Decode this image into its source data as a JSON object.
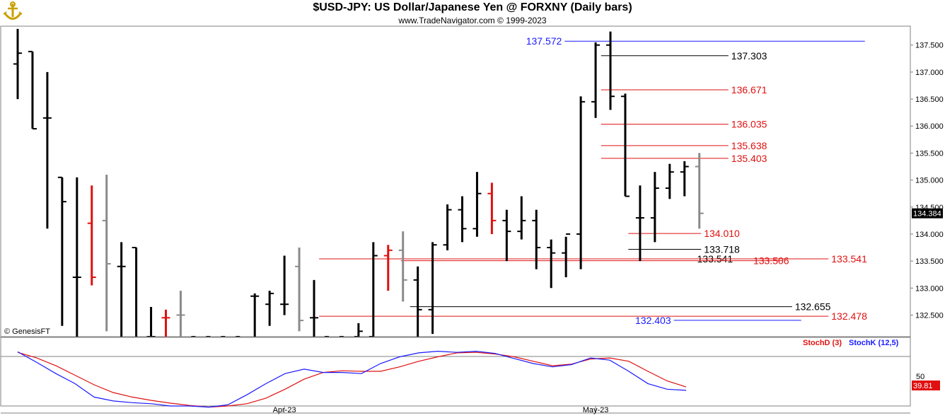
{
  "header": {
    "title": "$USD-JPY:  US Dollar/Japanese Yen @ FORXNY  (Daily bars)",
    "subtitle": "www.TradeNavigator.com © 1999-2023"
  },
  "watermark": "© GenesisFT",
  "colors": {
    "bar_black": "#000000",
    "bar_red": "#e01010",
    "bar_gray": "#8a8a8a",
    "level_red": "#e01010",
    "level_blue": "#1a1aff",
    "level_black": "#000000",
    "stoch_d": "#e01010",
    "stoch_k": "#1a1aff",
    "last_price_bg": "#000000",
    "stoch_last_bg": "#e01010"
  },
  "chart_data": [
    {
      "type": "ohlc",
      "title": "$USD-JPY:  US Dollar/Japanese Yen @ FORXNY  (Daily bars)",
      "ylim": [
        132.1,
        137.85
      ],
      "y_ticks": [
        "132.500",
        "133.000",
        "133.500",
        "134.000",
        "134.500",
        "135.000",
        "135.500",
        "136.000",
        "136.500",
        "137.000",
        "137.500"
      ],
      "y_tick_values": [
        132.5,
        133.0,
        133.5,
        134.0,
        134.5,
        135.0,
        135.5,
        136.0,
        136.5,
        137.0,
        137.5
      ],
      "x_labels": [
        {
          "label": "Apr-23",
          "bar": 18
        },
        {
          "label": "May-23",
          "bar": 39
        }
      ],
      "last_price": "134.384",
      "bars": [
        {
          "o": 137.15,
          "h": 137.8,
          "l": 136.5,
          "c": 137.35,
          "col": "black"
        },
        {
          "o": 137.38,
          "h": 137.38,
          "l": 135.95,
          "c": 135.95,
          "col": "black"
        },
        {
          "o": 136.15,
          "h": 137.0,
          "l": 134.1,
          "c": 136.15,
          "col": "black"
        },
        {
          "o": 135.05,
          "h": 135.05,
          "l": 132.3,
          "c": 134.6,
          "col": "black"
        },
        {
          "o": 133.2,
          "h": 135.05,
          "l": 132.1,
          "c": 133.2,
          "col": "black"
        },
        {
          "o": 134.2,
          "h": 134.9,
          "l": 133.05,
          "c": 133.2,
          "col": "red"
        },
        {
          "o": 134.25,
          "h": 135.1,
          "l": 132.2,
          "c": 133.45,
          "col": "gray"
        },
        {
          "o": 133.4,
          "h": 133.85,
          "l": 131.9,
          "c": 133.4,
          "col": "black"
        },
        {
          "o": 133.75,
          "h": 133.75,
          "l": 131.9,
          "c": 131.9,
          "col": "black"
        },
        {
          "o": 132.1,
          "h": 132.65,
          "l": 131.9,
          "c": 132.1,
          "col": "black"
        },
        {
          "o": 132.45,
          "h": 132.6,
          "l": 132.1,
          "c": 132.45,
          "col": "red"
        },
        {
          "o": 132.5,
          "h": 132.95,
          "l": 132.1,
          "c": 132.5,
          "col": "gray"
        },
        {
          "o": 132.1,
          "h": 132.1,
          "l": 131.9,
          "c": 131.9,
          "col": "black"
        },
        {
          "o": 132.1,
          "h": 132.1,
          "l": 131.9,
          "c": 131.9,
          "col": "black"
        },
        {
          "o": 132.1,
          "h": 132.1,
          "l": 131.9,
          "c": 131.9,
          "col": "black"
        },
        {
          "o": 132.1,
          "h": 132.1,
          "l": 131.9,
          "c": 131.9,
          "col": "black"
        },
        {
          "o": 132.85,
          "h": 132.9,
          "l": 132.1,
          "c": 132.85,
          "col": "black"
        },
        {
          "o": 132.7,
          "h": 132.95,
          "l": 132.3,
          "c": 132.9,
          "col": "black"
        },
        {
          "o": 132.7,
          "h": 133.6,
          "l": 132.5,
          "c": 132.7,
          "col": "black"
        },
        {
          "o": 133.4,
          "h": 133.75,
          "l": 132.2,
          "c": 132.4,
          "col": "gray"
        },
        {
          "o": 132.45,
          "h": 133.15,
          "l": 132.1,
          "c": 132.45,
          "col": "black"
        },
        {
          "o": 132.1,
          "h": 132.1,
          "l": 131.9,
          "c": 131.9,
          "col": "black"
        },
        {
          "o": 132.1,
          "h": 132.1,
          "l": 131.9,
          "c": 131.9,
          "col": "black"
        },
        {
          "o": 132.1,
          "h": 132.35,
          "l": 132.05,
          "c": 132.2,
          "col": "black"
        },
        {
          "o": 132.1,
          "h": 133.85,
          "l": 132.1,
          "c": 133.6,
          "col": "black"
        },
        {
          "o": 133.6,
          "h": 133.8,
          "l": 132.95,
          "c": 133.7,
          "col": "red"
        },
        {
          "o": 133.7,
          "h": 134.05,
          "l": 132.75,
          "c": 133.15,
          "col": "gray"
        },
        {
          "o": 133.15,
          "h": 133.4,
          "l": 132.1,
          "c": 132.6,
          "col": "black"
        },
        {
          "o": 132.6,
          "h": 133.85,
          "l": 132.15,
          "c": 133.8,
          "col": "black"
        },
        {
          "o": 133.8,
          "h": 134.55,
          "l": 133.7,
          "c": 134.45,
          "col": "black"
        },
        {
          "o": 134.45,
          "h": 134.7,
          "l": 133.85,
          "c": 134.1,
          "col": "black"
        },
        {
          "o": 134.1,
          "h": 135.15,
          "l": 133.95,
          "c": 134.75,
          "col": "black"
        },
        {
          "o": 134.75,
          "h": 134.95,
          "l": 134.0,
          "c": 134.25,
          "col": "red"
        },
        {
          "o": 134.25,
          "h": 134.45,
          "l": 133.5,
          "c": 134.05,
          "col": "black"
        },
        {
          "o": 134.05,
          "h": 134.7,
          "l": 133.9,
          "c": 134.25,
          "col": "black"
        },
        {
          "o": 134.25,
          "h": 134.45,
          "l": 133.35,
          "c": 133.75,
          "col": "black"
        },
        {
          "o": 133.75,
          "h": 133.9,
          "l": 133.0,
          "c": 133.65,
          "col": "black"
        },
        {
          "o": 133.65,
          "h": 133.95,
          "l": 133.2,
          "c": 134.0,
          "col": "black"
        },
        {
          "o": 134.0,
          "h": 136.55,
          "l": 133.35,
          "c": 136.45,
          "col": "black"
        },
        {
          "o": 136.45,
          "h": 137.55,
          "l": 136.15,
          "c": 137.5,
          "col": "black"
        },
        {
          "o": 137.5,
          "h": 137.75,
          "l": 136.3,
          "c": 136.55,
          "col": "black"
        },
        {
          "o": 136.55,
          "h": 136.6,
          "l": 134.7,
          "c": 134.7,
          "col": "black"
        },
        {
          "o": 134.3,
          "h": 134.9,
          "l": 133.5,
          "c": 134.3,
          "col": "black"
        },
        {
          "o": 134.3,
          "h": 135.15,
          "l": 133.85,
          "c": 134.85,
          "col": "black"
        },
        {
          "o": 134.85,
          "h": 135.3,
          "l": 134.65,
          "c": 135.15,
          "col": "black"
        },
        {
          "o": 135.15,
          "h": 135.35,
          "l": 134.7,
          "c": 135.25,
          "col": "black"
        },
        {
          "o": 135.25,
          "h": 135.5,
          "l": 134.1,
          "c": 134.384,
          "col": "gray"
        }
      ],
      "levels": [
        {
          "label": "137.572",
          "value": 137.572,
          "color": "blue",
          "x_from": 0.62,
          "x_to": 0.95,
          "label_side": "left"
        },
        {
          "label": "137.303",
          "value": 137.303,
          "color": "black",
          "x_from": 0.66,
          "x_to": 0.8,
          "label_side": "right"
        },
        {
          "label": "136.671",
          "value": 136.671,
          "color": "red",
          "x_from": 0.66,
          "x_to": 0.8,
          "label_side": "right"
        },
        {
          "label": "136.035",
          "value": 136.035,
          "color": "red",
          "x_from": 0.66,
          "x_to": 0.8,
          "label_side": "right"
        },
        {
          "label": "135.638",
          "value": 135.638,
          "color": "red",
          "x_from": 0.66,
          "x_to": 0.8,
          "label_side": "right"
        },
        {
          "label": "135.403",
          "value": 135.403,
          "color": "red",
          "x_from": 0.66,
          "x_to": 0.8,
          "label_side": "right"
        },
        {
          "label": "134.010",
          "value": 134.01,
          "color": "red",
          "x_from": 0.69,
          "x_to": 0.77,
          "label_side": "right"
        },
        {
          "label": "133.718",
          "value": 133.718,
          "color": "black",
          "x_from": 0.69,
          "x_to": 0.77,
          "label_side": "right"
        },
        {
          "label": "133.541",
          "value": 133.541,
          "color": "black",
          "x_from": 0.44,
          "x_to": 0.82,
          "label_side": "right_inner"
        },
        {
          "label": "133.506",
          "value": 133.506,
          "color": "red",
          "x_from": 0.44,
          "x_to": 0.86,
          "label_side": "right_mid"
        },
        {
          "label": "133.541",
          "value": 133.541,
          "color": "red",
          "x_from": 0.35,
          "x_to": 0.91,
          "label_side": "right"
        },
        {
          "label": "132.655",
          "value": 132.655,
          "color": "black",
          "x_from": 0.45,
          "x_to": 0.87,
          "label_side": "right"
        },
        {
          "label": "132.478",
          "value": 132.478,
          "color": "red",
          "x_from": 0.35,
          "x_to": 0.91,
          "label_side": "right"
        },
        {
          "label": "132.403",
          "value": 132.403,
          "color": "blue",
          "x_from": 0.74,
          "x_to": 0.88,
          "label_side": "left"
        }
      ]
    },
    {
      "type": "line",
      "series": [
        {
          "name": "StochD (3)",
          "color": "red",
          "values": [
            96,
            86,
            72,
            55,
            38,
            24,
            16,
            10,
            5,
            1,
            -2,
            0,
            4,
            14,
            30,
            48,
            60,
            63,
            62,
            62,
            70,
            80,
            88,
            95,
            96,
            93,
            88,
            80,
            72,
            75,
            84,
            86,
            80,
            62,
            45,
            34
          ]
        },
        {
          "name": "StochK (12,5)",
          "color": "blue",
          "values": [
            97,
            78,
            58,
            40,
            16,
            9,
            6,
            4,
            0,
            0,
            -2,
            2,
            20,
            40,
            58,
            66,
            60,
            60,
            58,
            76,
            88,
            95,
            98,
            96,
            98,
            94,
            85,
            76,
            70,
            74,
            86,
            82,
            62,
            40,
            30,
            28
          ]
        }
      ],
      "ylim": [
        0,
        100
      ],
      "y_ticks": [
        "50"
      ],
      "last_value": "39.81"
    }
  ]
}
